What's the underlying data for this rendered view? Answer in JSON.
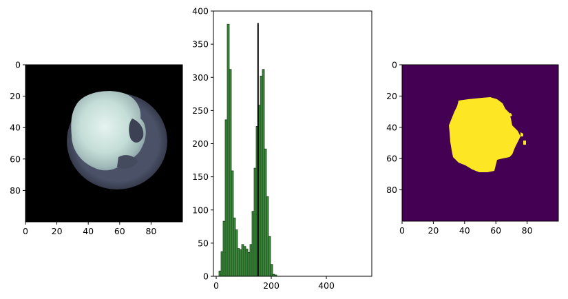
{
  "chart_data": [
    {
      "type": "image",
      "title": "",
      "xlabel": "",
      "ylabel": "",
      "xlim": [
        0,
        100
      ],
      "ylim": [
        100,
        0
      ],
      "xticks": [
        "0",
        "20",
        "40",
        "60",
        "80"
      ],
      "yticks": [
        "0",
        "20",
        "40",
        "60",
        "80"
      ],
      "content": "grayscale bone-colormap scan of a roughly circular object on black background"
    },
    {
      "type": "bar",
      "title": "",
      "xlabel": "",
      "ylabel": "",
      "xlim": [
        -10,
        565
      ],
      "ylim": [
        0,
        400
      ],
      "xticks": [
        "0",
        "200",
        "400"
      ],
      "yticks": [
        "0",
        "50",
        "100",
        "150",
        "200",
        "250",
        "300",
        "350",
        "400"
      ],
      "bar_color": "#3a8a3a",
      "bin_width": 7.5,
      "bins": [
        10,
        17.5,
        25,
        32.5,
        40,
        47.5,
        55,
        62.5,
        70,
        77.5,
        85,
        92.5,
        100,
        107.5,
        115,
        122.5,
        130,
        137.5,
        145,
        152.5,
        160,
        167.5,
        175,
        182.5,
        190,
        197.5,
        205,
        212.5,
        220,
        227.5,
        235,
        242.5,
        250,
        257.5
      ],
      "values": [
        8,
        37,
        83,
        236,
        380,
        312,
        159,
        88,
        70,
        42,
        40,
        48,
        45,
        41,
        36,
        48,
        98,
        163,
        226,
        258,
        302,
        312,
        192,
        120,
        60,
        18,
        3,
        2,
        0,
        0,
        0,
        0,
        0,
        0
      ],
      "threshold_line": {
        "x": 152,
        "ymin": 0,
        "ymax": 382,
        "color": "#000000"
      }
    },
    {
      "type": "image",
      "title": "",
      "xlabel": "",
      "ylabel": "",
      "xlim": [
        0,
        100
      ],
      "ylim": [
        100,
        0
      ],
      "xticks": [
        "0",
        "20",
        "40",
        "60",
        "80"
      ],
      "yticks": [
        "0",
        "20",
        "40",
        "60",
        "80"
      ],
      "content": "binary mask (viridis): yellow foreground blob on purple background",
      "colors": {
        "background": "#440154",
        "foreground": "#fde725"
      }
    }
  ]
}
